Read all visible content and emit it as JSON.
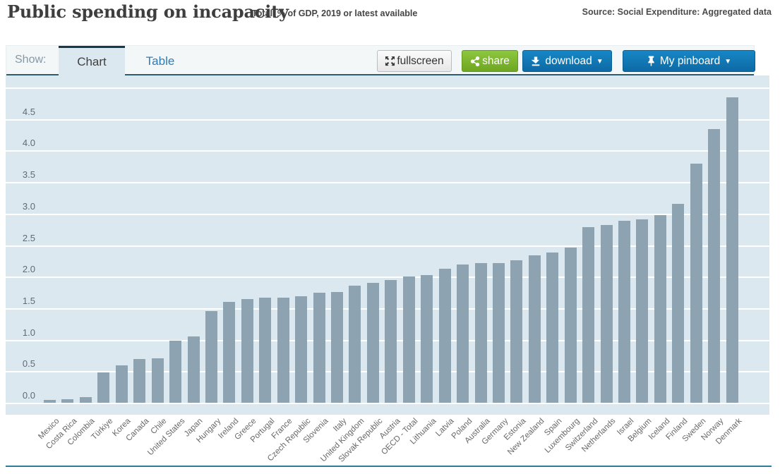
{
  "header": {
    "title": "Public spending on incapacity",
    "subtitle": "Total, % of GDP, 2019 or latest available",
    "source": "Source: Social Expenditure: Aggregated data"
  },
  "toolbar": {
    "show_label": "Show:",
    "tabs": [
      {
        "label": "Chart",
        "active": true
      },
      {
        "label": "Table",
        "active": false
      }
    ],
    "buttons": {
      "fullscreen": {
        "label": "fullscreen",
        "icon": "expand-icon"
      },
      "share": {
        "label": "share",
        "icon": "share-icon",
        "color": "#7db32f"
      },
      "download": {
        "label": "download",
        "icon": "download-icon",
        "caret": "▼",
        "color": "#1178b5"
      },
      "pinboard": {
        "label": "My pinboard",
        "icon": "pin-icon",
        "caret": "▼",
        "color": "#1178b5"
      }
    }
  },
  "chart_data": {
    "type": "bar",
    "title": "Public spending on incapacity",
    "subtitle": "Total, % of GDP, 2019 or latest available",
    "ylabel": "% of GDP",
    "ylim": [
      0,
      5
    ],
    "ytick_step": 0.5,
    "yticks": [
      "0.0",
      "0.5",
      "1.0",
      "1.5",
      "2.0",
      "2.5",
      "3.0",
      "3.5",
      "4.0",
      "4.5"
    ],
    "grid": true,
    "legend": "none",
    "bar_color": "#8ea3b1",
    "plot_background": "#dce8f0",
    "categories": [
      "Mexico",
      "Costa Rica",
      "Colombia",
      "Türkiye",
      "Korea",
      "Canada",
      "Chile",
      "United States",
      "Japan",
      "Hungary",
      "Ireland",
      "Greece",
      "Portugal",
      "France",
      "Czech Republic",
      "Slovenia",
      "Italy",
      "United Kingdom",
      "Slovak Republic",
      "Austria",
      "OECD - Total",
      "Lithuania",
      "Latvia",
      "Poland",
      "Australia",
      "Germany",
      "Estonia",
      "New Zealand",
      "Spain",
      "Luxembourg",
      "Switzerland",
      "Netherlands",
      "Israel",
      "Belgium",
      "Iceland",
      "Finland",
      "Sweden",
      "Norway",
      "Denmark"
    ],
    "values": [
      0.05,
      0.06,
      0.09,
      0.48,
      0.59,
      0.69,
      0.71,
      0.98,
      1.05,
      1.45,
      1.6,
      1.64,
      1.67,
      1.67,
      1.69,
      1.75,
      1.76,
      1.86,
      1.9,
      1.95,
      2.0,
      2.03,
      2.13,
      2.19,
      2.21,
      2.22,
      2.26,
      2.34,
      2.38,
      2.46,
      2.78,
      2.82,
      2.89,
      2.91,
      2.97,
      3.15,
      3.79,
      4.34,
      4.84
    ]
  }
}
